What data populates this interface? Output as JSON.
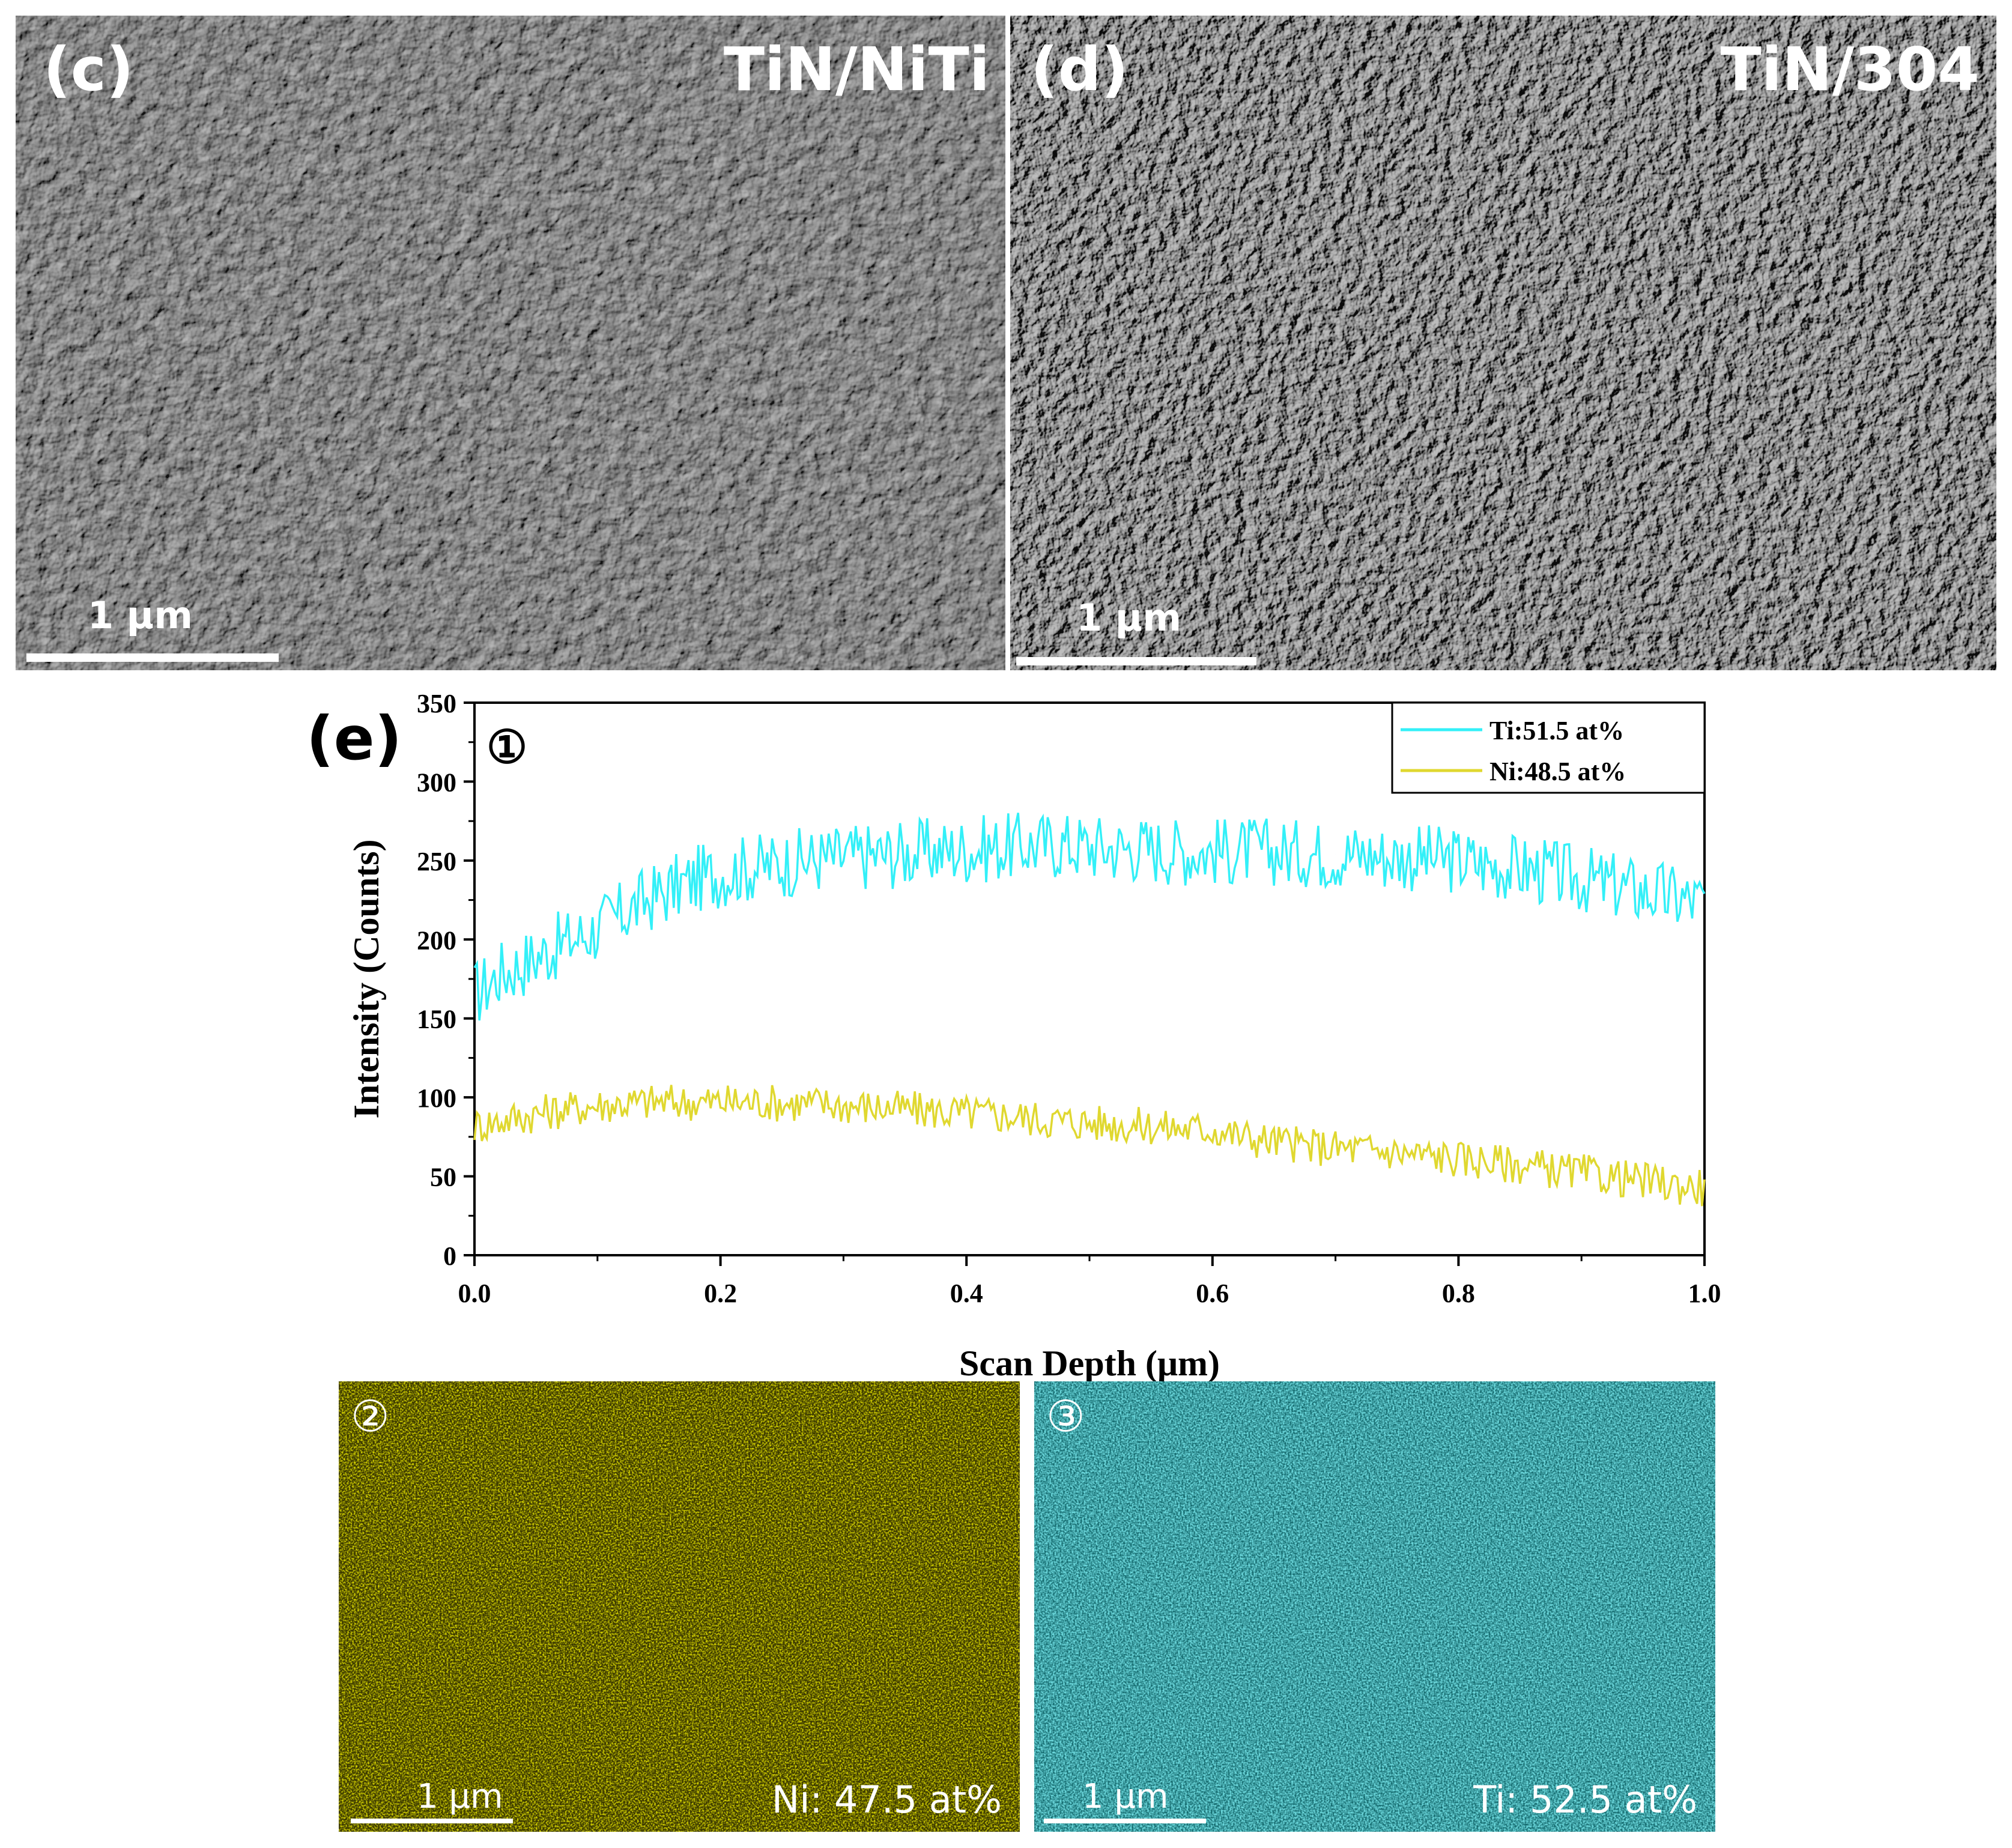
{
  "panels": {
    "c": {
      "label": "(c)",
      "title": "TiN/NiTi",
      "scale_bar": "1 μm"
    },
    "d": {
      "label": "(d)",
      "title": "TiN/304",
      "scale_bar": "1 μm"
    }
  },
  "chart_panel_label": "(e)",
  "chart_marker": "①",
  "maps": [
    {
      "marker": "②",
      "element_label": "Ni: 47.5 at%",
      "scale_bar": "1 μm",
      "color": "#b5b000"
    },
    {
      "marker": "③",
      "element_label": "Ti: 52.5 at%",
      "scale_bar": "1 μm",
      "color": "#1fb3b8"
    }
  ],
  "chart_data": {
    "type": "line",
    "xlabel": "Scan Depth (μm)",
    "ylabel": "Intensity (Counts)",
    "xlim": [
      0,
      1.0
    ],
    "ylim": [
      0,
      350
    ],
    "xticks": [
      "0.0",
      "0.2",
      "0.4",
      "0.6",
      "0.8",
      "1.0"
    ],
    "yticks": [
      "0",
      "50",
      "100",
      "150",
      "200",
      "250",
      "300",
      "350"
    ],
    "legend_position": "top-right",
    "grid": false,
    "series": [
      {
        "name": "Ti:51.5 at%",
        "color": "#33f0f8",
        "x": [
          0.0,
          0.02,
          0.04,
          0.06,
          0.08,
          0.1,
          0.12,
          0.14,
          0.16,
          0.18,
          0.2,
          0.22,
          0.24,
          0.26,
          0.28,
          0.3,
          0.32,
          0.34,
          0.36,
          0.38,
          0.4,
          0.42,
          0.44,
          0.46,
          0.48,
          0.5,
          0.52,
          0.54,
          0.56,
          0.58,
          0.6,
          0.62,
          0.64,
          0.66,
          0.68,
          0.7,
          0.72,
          0.74,
          0.76,
          0.78,
          0.8,
          0.82,
          0.84,
          0.86,
          0.88,
          0.9,
          0.92,
          0.94,
          0.96,
          0.98,
          1.0
        ],
        "y": [
          165,
          178,
          185,
          193,
          200,
          207,
          216,
          225,
          232,
          238,
          242,
          245,
          247,
          249,
          251,
          252,
          253,
          254,
          255,
          256,
          257,
          258,
          259,
          260,
          260,
          259,
          258,
          258,
          257,
          256,
          256,
          256,
          256,
          255,
          255,
          254,
          254,
          253,
          252,
          251,
          250,
          248,
          246,
          244,
          241,
          238,
          235,
          232,
          229,
          226,
          223
        ]
      },
      {
        "name": "Ni:48.5 at%",
        "color": "#e0d830",
        "x": [
          0.0,
          0.02,
          0.04,
          0.06,
          0.08,
          0.1,
          0.12,
          0.14,
          0.16,
          0.18,
          0.2,
          0.22,
          0.24,
          0.26,
          0.28,
          0.3,
          0.32,
          0.34,
          0.36,
          0.38,
          0.4,
          0.42,
          0.44,
          0.46,
          0.48,
          0.5,
          0.52,
          0.54,
          0.56,
          0.58,
          0.6,
          0.62,
          0.64,
          0.66,
          0.68,
          0.7,
          0.72,
          0.74,
          0.76,
          0.78,
          0.8,
          0.82,
          0.84,
          0.86,
          0.88,
          0.9,
          0.92,
          0.94,
          0.96,
          0.98,
          1.0
        ],
        "y": [
          82,
          85,
          88,
          91,
          93,
          95,
          96,
          97,
          97,
          97,
          97,
          97,
          97,
          96,
          96,
          95,
          94,
          93,
          92,
          91,
          90,
          89,
          88,
          86,
          85,
          84,
          83,
          82,
          81,
          80,
          80,
          76,
          73,
          71,
          69,
          68,
          67,
          66,
          64,
          63,
          61,
          60,
          58,
          56,
          54,
          52,
          50,
          48,
          46,
          44,
          43
        ]
      }
    ]
  }
}
